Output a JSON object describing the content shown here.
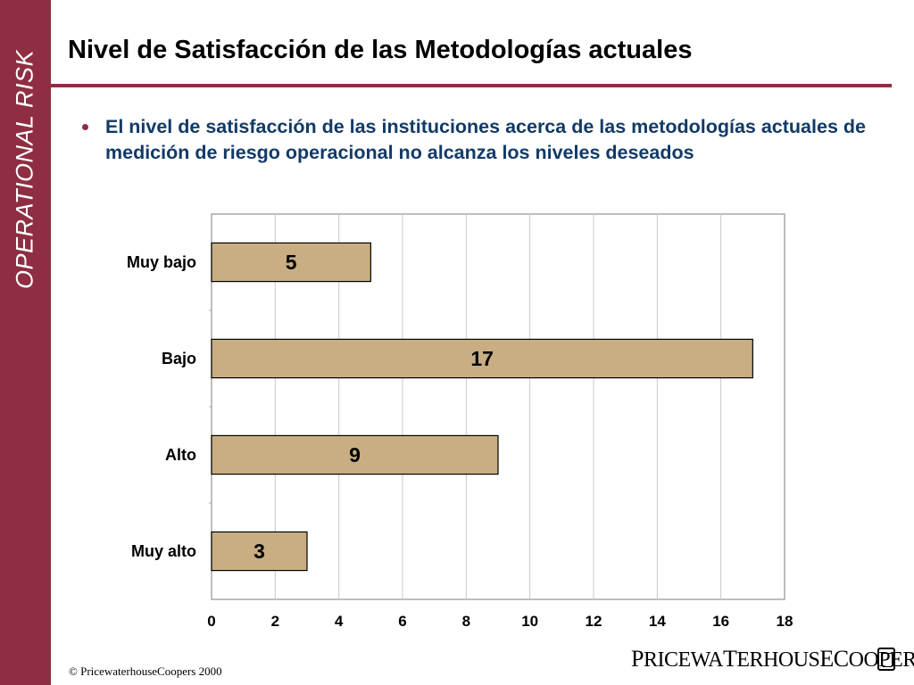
{
  "sidebar": {
    "label": "OPERATIONAL RISK"
  },
  "header": {
    "title": "Nivel de Satisfacción de las Metodologías actuales"
  },
  "bullet": {
    "text": "El nivel de satisfacción de las instituciones acerca de las metodologías actuales de medición de riesgo operacional no alcanza los niveles deseados"
  },
  "footer": {
    "copyright": "© PricewaterhouseCoopers 2000",
    "logo": "PRICEWATERHOUSECOOPERS"
  },
  "colors": {
    "sidebar": "#8f2e42",
    "bar_fill": "#c8ae82",
    "bullet_text": "#123a66"
  },
  "chart_data": {
    "type": "bar",
    "orientation": "horizontal",
    "categories": [
      "Muy bajo",
      "Bajo",
      "Alto",
      "Muy alto"
    ],
    "values": [
      5,
      17,
      9,
      3
    ],
    "data_labels": [
      "5",
      "17",
      "9",
      "3"
    ],
    "xlim": [
      0,
      18
    ],
    "xticks": [
      0,
      2,
      4,
      6,
      8,
      10,
      12,
      14,
      16,
      18
    ],
    "title": "",
    "xlabel": "",
    "ylabel": "",
    "grid": "vertical",
    "legend": "none"
  }
}
